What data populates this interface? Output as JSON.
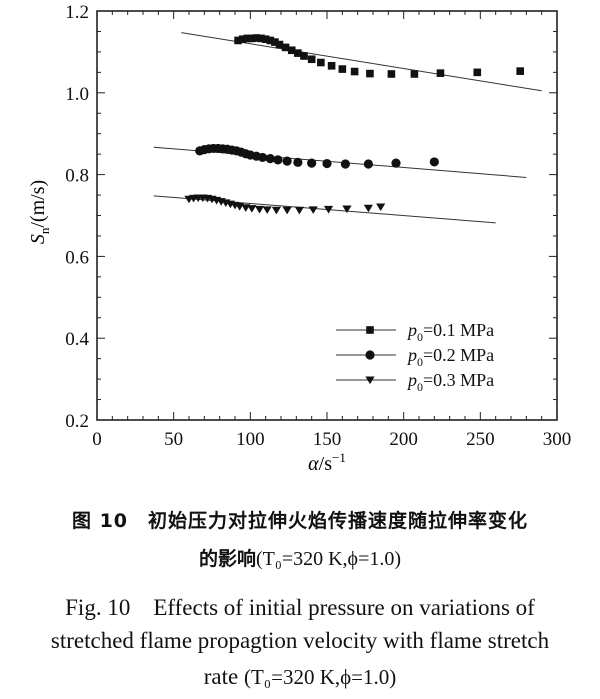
{
  "chart_data": {
    "type": "scatter",
    "ylabel_symbol": "S",
    "ylabel_subscript": "n",
    "ylabel_unit": "/(m/s)",
    "xlabel_symbol": "α",
    "xlabel_unit": "/s",
    "xlabel_superscript": "−1",
    "xlim": [
      0,
      300
    ],
    "ylim": [
      0.2,
      1.2
    ],
    "x_ticks": [
      "0",
      "50",
      "100",
      "150",
      "200",
      "250",
      "300"
    ],
    "y_ticks": [
      "0.2",
      "0.4",
      "0.6",
      "0.8",
      "1.0",
      "1.2"
    ],
    "legend_position": "lower-right",
    "series": [
      {
        "name": "p0=0.1 MPa",
        "legend_symbol": "p",
        "legend_subscript": "0",
        "legend_value": "=0.1 MPa",
        "marker": "square",
        "points": [
          [
            92,
            1.128
          ],
          [
            95,
            1.131
          ],
          [
            98,
            1.133
          ],
          [
            101,
            1.133
          ],
          [
            104,
            1.134
          ],
          [
            107,
            1.133
          ],
          [
            110,
            1.131
          ],
          [
            113,
            1.128
          ],
          [
            116,
            1.124
          ],
          [
            119,
            1.118
          ],
          [
            123,
            1.111
          ],
          [
            127,
            1.104
          ],
          [
            131,
            1.097
          ],
          [
            135,
            1.09
          ],
          [
            140,
            1.082
          ],
          [
            146,
            1.074
          ],
          [
            153,
            1.066
          ],
          [
            160,
            1.058
          ],
          [
            168,
            1.052
          ],
          [
            178,
            1.047
          ],
          [
            192,
            1.046
          ],
          [
            207,
            1.046
          ],
          [
            224,
            1.048
          ],
          [
            248,
            1.05
          ],
          [
            276,
            1.053
          ]
        ],
        "fit_line": [
          [
            55,
            1.147
          ],
          [
            290,
            1.005
          ]
        ]
      },
      {
        "name": "p0=0.2 MPa",
        "legend_symbol": "p",
        "legend_subscript": "0",
        "legend_value": "=0.2 MPa",
        "marker": "circle",
        "points": [
          [
            67,
            0.858
          ],
          [
            70,
            0.861
          ],
          [
            73,
            0.863
          ],
          [
            76,
            0.864
          ],
          [
            79,
            0.864
          ],
          [
            82,
            0.863
          ],
          [
            85,
            0.862
          ],
          [
            88,
            0.86
          ],
          [
            91,
            0.858
          ],
          [
            94,
            0.855
          ],
          [
            97,
            0.851
          ],
          [
            100,
            0.848
          ],
          [
            104,
            0.845
          ],
          [
            108,
            0.842
          ],
          [
            113,
            0.839
          ],
          [
            118,
            0.836
          ],
          [
            124,
            0.833
          ],
          [
            131,
            0.83
          ],
          [
            140,
            0.828
          ],
          [
            150,
            0.827
          ],
          [
            162,
            0.826
          ],
          [
            177,
            0.826
          ],
          [
            195,
            0.828
          ],
          [
            220,
            0.831
          ]
        ],
        "fit_line": [
          [
            37,
            0.867
          ],
          [
            280,
            0.793
          ]
        ]
      },
      {
        "name": "p0=0.3 MPa",
        "legend_symbol": "p",
        "legend_subscript": "0",
        "legend_value": "=0.3 MPa",
        "marker": "triangle-down",
        "points": [
          [
            60,
            0.74
          ],
          [
            63,
            0.742
          ],
          [
            66,
            0.743
          ],
          [
            69,
            0.743
          ],
          [
            72,
            0.742
          ],
          [
            75,
            0.74
          ],
          [
            78,
            0.737
          ],
          [
            81,
            0.734
          ],
          [
            84,
            0.731
          ],
          [
            87,
            0.728
          ],
          [
            90,
            0.725
          ],
          [
            93,
            0.722
          ],
          [
            97,
            0.719
          ],
          [
            101,
            0.717
          ],
          [
            106,
            0.715
          ],
          [
            111,
            0.714
          ],
          [
            117,
            0.713
          ],
          [
            124,
            0.713
          ],
          [
            132,
            0.713
          ],
          [
            141,
            0.714
          ],
          [
            151,
            0.715
          ],
          [
            163,
            0.716
          ],
          [
            177,
            0.718
          ],
          [
            185,
            0.721
          ]
        ],
        "fit_line": [
          [
            37,
            0.748
          ],
          [
            260,
            0.682
          ]
        ]
      }
    ]
  },
  "caption": {
    "cn_line1": "图 10　初始压力对拉伸火焰传播速度随拉伸率变化",
    "cn_line2": "的影响",
    "cn_condition": "(T₀=320 K,ϕ=1.0)",
    "en_line1": "Fig. 10　Effects of initial pressure on variations of",
    "en_line2": "stretched flame propagtion velocity with flame stretch",
    "en_line3": "rate",
    "en_condition": "(T₀=320 K,ϕ=1.0)"
  }
}
